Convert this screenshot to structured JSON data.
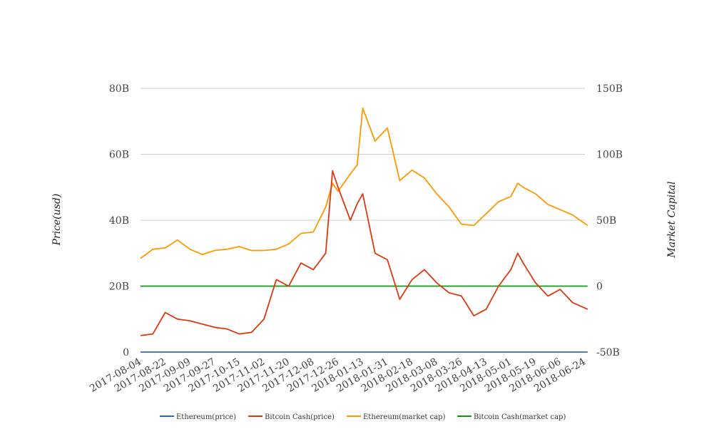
{
  "chart_data": {
    "type": "line",
    "title": "",
    "ylabel": "Price(usd)",
    "y2label": "Market Capital",
    "ylim": [
      0,
      80000000000
    ],
    "y2lim": [
      -50000000000,
      150000000000
    ],
    "y_ticks": [
      {
        "value": 0,
        "label": "0"
      },
      {
        "value": 20000000000,
        "label": "20B"
      },
      {
        "value": 40000000000,
        "label": "40B"
      },
      {
        "value": 60000000000,
        "label": "60B"
      },
      {
        "value": 80000000000,
        "label": "80B"
      }
    ],
    "y2_ticks": [
      {
        "value": -50000000000,
        "label": "-50B"
      },
      {
        "value": 0,
        "label": "0"
      },
      {
        "value": 50000000000,
        "label": "50B"
      },
      {
        "value": 100000000000,
        "label": "100B"
      },
      {
        "value": 150000000000,
        "label": "150B"
      }
    ],
    "x_ticks": [
      "2017-08-04",
      "2017-08-22",
      "2017-09-09",
      "2017-09-27",
      "2017-10-15",
      "2017-11-02",
      "2017-11-20",
      "2017-12-08",
      "2017-12-26",
      "2018-01-13",
      "2018-01-31",
      "2018-02-18",
      "2018-03-08",
      "2018-03-26",
      "2018-04-13",
      "2018-05-01",
      "2018-05-19",
      "2018-06-06",
      "2018-06-24"
    ],
    "x": [
      "2017-08-04",
      "2017-08-13",
      "2017-08-22",
      "2017-08-31",
      "2017-09-09",
      "2017-09-18",
      "2017-09-27",
      "2017-10-06",
      "2017-10-15",
      "2017-10-24",
      "2017-11-02",
      "2017-11-11",
      "2017-11-20",
      "2017-11-29",
      "2017-12-08",
      "2017-12-17",
      "2017-12-22",
      "2017-12-26",
      "2018-01-04",
      "2018-01-09",
      "2018-01-13",
      "2018-01-22",
      "2018-01-31",
      "2018-02-09",
      "2018-02-18",
      "2018-02-27",
      "2018-03-08",
      "2018-03-17",
      "2018-03-26",
      "2018-04-04",
      "2018-04-13",
      "2018-04-22",
      "2018-05-01",
      "2018-05-06",
      "2018-05-10",
      "2018-05-19",
      "2018-05-28",
      "2018-06-06",
      "2018-06-15",
      "2018-06-26"
    ],
    "legend_position": "bottom",
    "grid": true,
    "series": [
      {
        "name": "Ethereum(price)",
        "axis": "left",
        "color": "#3366cc",
        "values": [
          300,
          300,
          310,
          320,
          300,
          280,
          290,
          300,
          310,
          300,
          290,
          310,
          350,
          450,
          460,
          700,
          780,
          750,
          950,
          1000,
          1300,
          1100,
          1050,
          900,
          850,
          850,
          750,
          600,
          450,
          400,
          500,
          600,
          700,
          750,
          700,
          600,
          550,
          600,
          500,
          450
        ]
      },
      {
        "name": "Bitcoin Cash(price)",
        "axis": "left",
        "color": "#dc3912",
        "values": [
          5000000000,
          5500000000,
          12000000000,
          10000000000,
          9500000000,
          8500000000,
          7500000000,
          7000000000,
          5500000000,
          6000000000,
          10000000000,
          22000000000,
          20000000000,
          27000000000,
          25000000000,
          30000000000,
          55000000000,
          50000000000,
          40000000000,
          45000000000,
          48000000000,
          30000000000,
          28000000000,
          16000000000,
          22000000000,
          25000000000,
          21000000000,
          18000000000,
          17000000000,
          11000000000,
          13000000000,
          20000000000,
          25000000000,
          30000000000,
          27000000000,
          21000000000,
          17000000000,
          19000000000,
          15000000000,
          13000000000
        ]
      },
      {
        "name": "Ethereum(market cap)",
        "axis": "right",
        "color": "#ff9900",
        "values": [
          21000000000,
          28000000000,
          29000000000,
          35000000000,
          28000000000,
          24000000000,
          27000000000,
          28000000000,
          30000000000,
          27000000000,
          27000000000,
          28000000000,
          32000000000,
          40000000000,
          41000000000,
          60000000000,
          78000000000,
          72000000000,
          85000000000,
          92000000000,
          135000000000,
          110000000000,
          120000000000,
          80000000000,
          88000000000,
          82000000000,
          70000000000,
          60000000000,
          47000000000,
          46000000000,
          55000000000,
          64000000000,
          68000000000,
          78000000000,
          75000000000,
          70000000000,
          62000000000,
          58000000000,
          54000000000,
          46000000000
        ]
      },
      {
        "name": "Bitcoin Cash(market cap)",
        "axis": "right",
        "color": "#109618",
        "values": [
          0,
          0,
          0,
          0,
          0,
          0,
          0,
          0,
          0,
          0,
          0,
          0,
          0,
          0,
          0,
          0,
          0,
          0,
          0,
          0,
          0,
          0,
          0,
          0,
          0,
          0,
          0,
          0,
          0,
          0,
          0,
          0,
          0,
          0,
          0,
          0,
          0,
          0,
          0,
          0
        ]
      }
    ]
  }
}
